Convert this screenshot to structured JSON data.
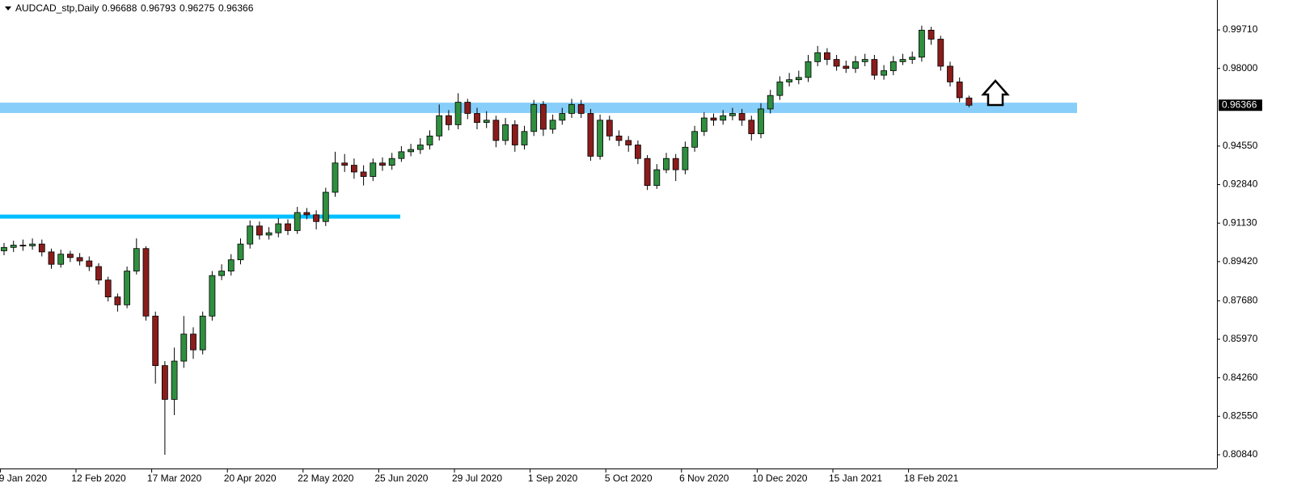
{
  "chart_data": {
    "type": "candlestick",
    "title": "AUDCAD_stp,Daily",
    "categories": [
      null,
      null,
      "9 Jan 2020",
      null,
      null,
      null,
      null,
      null,
      null,
      null,
      "12 Feb 2020",
      null,
      null,
      null,
      null,
      null,
      null,
      null,
      "17 Mar 2020",
      null,
      null,
      null,
      null,
      null,
      null,
      null,
      "20 Apr 2020",
      null,
      null,
      null,
      null,
      null,
      null,
      null,
      "22 May 2020",
      null,
      null,
      null,
      null,
      null,
      null,
      null,
      "25 Jun 2020",
      null,
      null,
      null,
      null,
      null,
      null,
      null,
      "29 Jul 2020",
      null,
      null,
      null,
      null,
      null,
      null,
      null,
      "1 Sep 2020",
      null,
      null,
      null,
      null,
      null,
      null,
      null,
      "5 Oct 2020",
      null,
      null,
      null,
      null,
      null,
      null,
      null,
      "6 Nov 2020",
      null,
      null,
      null,
      null,
      null,
      null,
      null,
      "10 Dec 2020",
      null,
      null,
      null,
      null,
      null,
      null,
      null,
      "15 Jan 2021",
      null,
      null,
      null,
      null,
      null,
      null,
      null,
      "18 Feb 2021",
      null,
      null,
      null,
      null
    ],
    "open": [
      0.899,
      0.9005,
      0.9015,
      0.9012,
      0.902,
      0.8985,
      0.893,
      0.8975,
      0.896,
      0.8945,
      0.892,
      0.886,
      0.8785,
      0.875,
      0.89,
      0.9,
      0.87,
      0.848,
      0.833,
      0.85,
      0.862,
      0.855,
      0.87,
      0.888,
      0.89,
      0.895,
      0.902,
      0.91,
      0.906,
      0.907,
      0.911,
      0.908,
      0.916,
      0.915,
      0.912,
      0.925,
      0.938,
      0.937,
      0.934,
      0.932,
      0.938,
      0.937,
      0.94,
      0.943,
      0.944,
      0.946,
      0.95,
      0.959,
      0.955,
      0.965,
      0.96,
      0.956,
      0.957,
      0.948,
      0.955,
      0.946,
      0.952,
      0.964,
      0.953,
      0.957,
      0.96,
      0.964,
      0.96,
      0.941,
      0.957,
      0.95,
      0.948,
      0.946,
      0.94,
      0.928,
      0.935,
      0.94,
      0.935,
      0.945,
      0.952,
      0.958,
      0.957,
      0.959,
      0.96,
      0.957,
      0.951,
      0.962,
      0.968,
      0.974,
      0.975,
      0.976,
      0.983,
      0.987,
      0.984,
      0.981,
      0.98,
      0.983,
      0.984,
      0.977,
      0.979,
      0.983,
      0.984,
      0.985,
      0.997,
      0.993,
      0.981,
      0.974,
      0.96688
    ],
    "high": [
      0.9025,
      0.9035,
      0.904,
      0.9045,
      0.904,
      0.9,
      0.8995,
      0.899,
      0.898,
      0.8965,
      0.8935,
      0.8875,
      0.88,
      0.892,
      0.9045,
      0.901,
      0.872,
      0.85,
      0.856,
      0.87,
      0.865,
      0.872,
      0.89,
      0.893,
      0.8975,
      0.9045,
      0.9125,
      0.912,
      0.9095,
      0.9135,
      0.913,
      0.9185,
      0.918,
      0.917,
      0.927,
      0.943,
      0.942,
      0.94,
      0.937,
      0.94,
      0.9405,
      0.9425,
      0.9455,
      0.9465,
      0.949,
      0.9525,
      0.964,
      0.9615,
      0.969,
      0.9665,
      0.9625,
      0.961,
      0.959,
      0.958,
      0.957,
      0.9545,
      0.966,
      0.9655,
      0.9595,
      0.9625,
      0.9665,
      0.966,
      0.962,
      0.9595,
      0.959,
      0.9525,
      0.95,
      0.948,
      0.9415,
      0.9375,
      0.9425,
      0.942,
      0.9475,
      0.9545,
      0.9605,
      0.96,
      0.9615,
      0.9625,
      0.962,
      0.959,
      0.9645,
      0.9705,
      0.9765,
      0.978,
      0.979,
      0.986,
      0.99,
      0.989,
      0.986,
      0.9835,
      0.9855,
      0.9865,
      0.986,
      0.9815,
      0.9855,
      0.9865,
      0.9875,
      0.999,
      0.9985,
      0.9945,
      0.983,
      0.976,
      0.96793
    ],
    "low": [
      0.897,
      0.8985,
      0.899,
      0.8995,
      0.8965,
      0.891,
      0.8915,
      0.894,
      0.8925,
      0.89,
      0.884,
      0.8765,
      0.872,
      0.8735,
      0.8885,
      0.868,
      0.84,
      0.8084,
      0.826,
      0.847,
      0.851,
      0.853,
      0.868,
      0.886,
      0.888,
      0.893,
      0.9,
      0.904,
      0.904,
      0.905,
      0.906,
      0.9065,
      0.913,
      0.9085,
      0.91,
      0.923,
      0.934,
      0.931,
      0.928,
      0.93,
      0.9345,
      0.935,
      0.9385,
      0.941,
      0.942,
      0.944,
      0.948,
      0.9525,
      0.953,
      0.9575,
      0.953,
      0.9535,
      0.945,
      0.946,
      0.943,
      0.944,
      0.95,
      0.95,
      0.951,
      0.955,
      0.958,
      0.958,
      0.939,
      0.9395,
      0.948,
      0.9455,
      0.943,
      0.9375,
      0.926,
      0.9265,
      0.9335,
      0.93,
      0.933,
      0.943,
      0.95,
      0.9545,
      0.955,
      0.957,
      0.9545,
      0.948,
      0.949,
      0.96,
      0.966,
      0.972,
      0.973,
      0.974,
      0.981,
      0.9815,
      0.979,
      0.978,
      0.978,
      0.981,
      0.975,
      0.975,
      0.977,
      0.9815,
      0.982,
      0.983,
      0.9905,
      0.979,
      0.972,
      0.965,
      0.96275
    ],
    "close": [
      0.9005,
      0.9015,
      0.9012,
      0.902,
      0.8985,
      0.893,
      0.8975,
      0.896,
      0.8945,
      0.892,
      0.886,
      0.8785,
      0.875,
      0.89,
      0.9,
      0.87,
      0.848,
      0.833,
      0.85,
      0.862,
      0.855,
      0.87,
      0.888,
      0.89,
      0.895,
      0.902,
      0.91,
      0.906,
      0.907,
      0.911,
      0.908,
      0.916,
      0.915,
      0.912,
      0.925,
      0.938,
      0.937,
      0.934,
      0.932,
      0.938,
      0.937,
      0.94,
      0.943,
      0.944,
      0.946,
      0.95,
      0.959,
      0.955,
      0.965,
      0.96,
      0.956,
      0.957,
      0.948,
      0.955,
      0.946,
      0.952,
      0.964,
      0.953,
      0.957,
      0.96,
      0.964,
      0.96,
      0.941,
      0.957,
      0.95,
      0.948,
      0.946,
      0.94,
      0.928,
      0.935,
      0.94,
      0.935,
      0.945,
      0.952,
      0.958,
      0.957,
      0.959,
      0.96,
      0.957,
      0.951,
      0.962,
      0.968,
      0.974,
      0.975,
      0.976,
      0.983,
      0.987,
      0.984,
      0.981,
      0.98,
      0.983,
      0.984,
      0.977,
      0.979,
      0.983,
      0.984,
      0.985,
      0.997,
      0.993,
      0.981,
      0.974,
      0.967,
      0.96366
    ],
    "up_color": "#2f8f3f",
    "down_color": "#8b1c1c",
    "wick_color": "#000000",
    "ylim": [
      0.8023,
      1.0104
    ],
    "yticks": [
      {
        "value": 0.9971,
        "label": "0.99710"
      },
      {
        "value": 0.98,
        "label": "0.98000"
      },
      {
        "value": 0.9455,
        "label": "0.94550"
      },
      {
        "value": 0.9284,
        "label": "0.92840"
      },
      {
        "value": 0.9113,
        "label": "0.91130"
      },
      {
        "value": 0.8942,
        "label": "0.89420"
      },
      {
        "value": 0.8768,
        "label": "0.87680"
      },
      {
        "value": 0.8597,
        "label": "0.85970"
      },
      {
        "value": 0.8426,
        "label": "0.84260"
      },
      {
        "value": 0.8255,
        "label": "0.82550"
      },
      {
        "value": 0.8084,
        "label": "0.80840"
      }
    ],
    "zones": [
      {
        "from": 0.9602,
        "to": 0.9648,
        "color": "#87cefa"
      },
      {
        "from": 0.9133,
        "to": 0.9151,
        "color": "#00bfff"
      }
    ]
  }
}
